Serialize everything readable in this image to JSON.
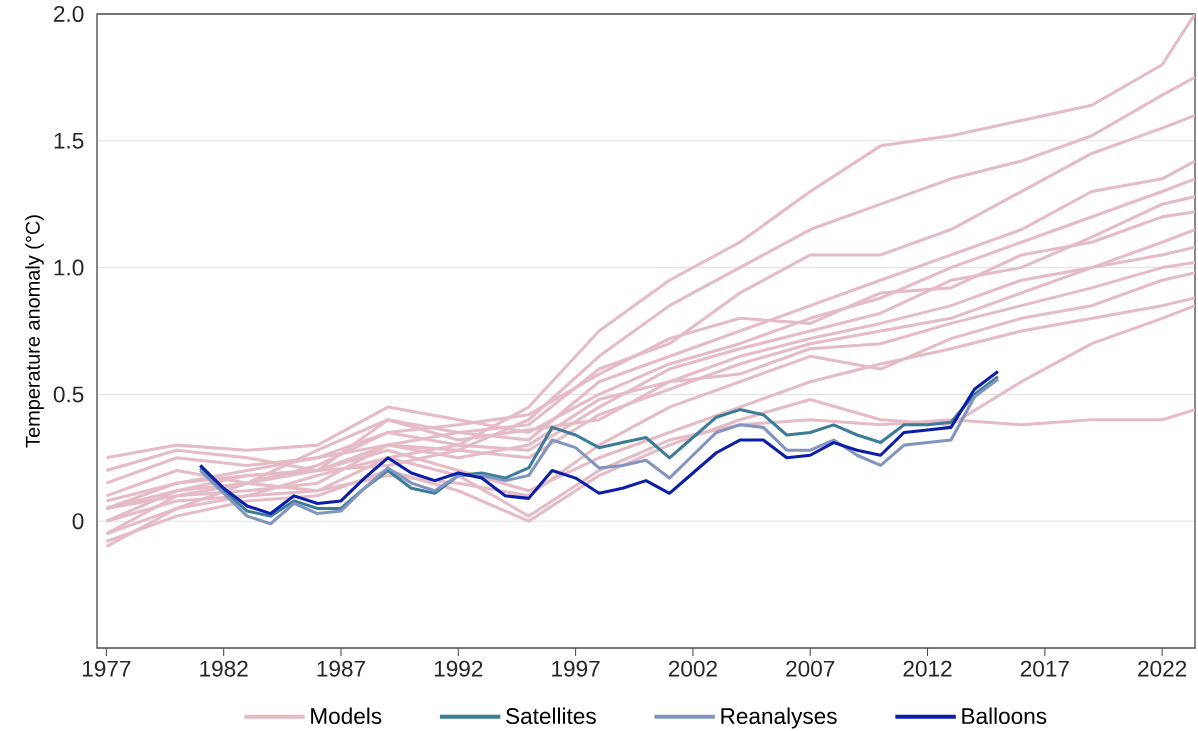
{
  "chart_data": {
    "type": "line",
    "ylabel": "Temperature anomaly (°C)",
    "xlim": [
      1976.6,
      2023.4
    ],
    "ylim": [
      -0.5,
      2.0
    ],
    "xticks": [
      1977,
      1982,
      1987,
      1992,
      1997,
      2002,
      2007,
      2012,
      2017,
      2022
    ],
    "yticks": [
      0,
      0.5,
      {
        "value": 1.0,
        "label": "1.0"
      },
      1.5,
      {
        "value": 2.0,
        "label": "2.0"
      }
    ],
    "grid": "y",
    "legend": "bottom",
    "series": [
      {
        "name": "Models",
        "color": "#e5bcc5",
        "x": [
          1977,
          1980,
          1983,
          1986,
          1989,
          1992,
          1995,
          1998,
          2001,
          2004,
          2007,
          2010,
          2013,
          2016,
          2019,
          2022,
          2023.4
        ],
        "values": [
          -0.05,
          0.1,
          0.15,
          0.22,
          0.35,
          0.3,
          0.45,
          0.75,
          0.95,
          1.1,
          1.3,
          1.48,
          1.52,
          1.58,
          1.64,
          1.8,
          2.0
        ]
      },
      {
        "color": "#e5bcc5",
        "x": [
          1977,
          1980,
          1983,
          1986,
          1989,
          1992,
          1995,
          1998,
          2001,
          2004,
          2007,
          2010,
          2013,
          2016,
          2019,
          2022,
          2023.4
        ],
        "values": [
          0.05,
          0.15,
          0.2,
          0.25,
          0.3,
          0.28,
          0.4,
          0.65,
          0.85,
          1.0,
          1.15,
          1.25,
          1.35,
          1.42,
          1.52,
          1.68,
          1.75
        ]
      },
      {
        "color": "#e5bcc5",
        "x": [
          1977,
          1980,
          1983,
          1986,
          1989,
          1992,
          1995,
          1998,
          2001,
          2004,
          2007,
          2010,
          2013,
          2016,
          2019,
          2022,
          2023.4
        ],
        "values": [
          0.1,
          0.2,
          0.15,
          0.28,
          0.4,
          0.35,
          0.38,
          0.6,
          0.7,
          0.9,
          1.05,
          1.05,
          1.15,
          1.3,
          1.45,
          1.55,
          1.6
        ]
      },
      {
        "color": "#e5bcc5",
        "x": [
          1977,
          1980,
          1983,
          1986,
          1989,
          1992,
          1995,
          1998,
          2001,
          2004,
          2007,
          2010,
          2013,
          2016,
          2019,
          2022,
          2023.4
        ],
        "values": [
          0.0,
          0.12,
          0.18,
          0.2,
          0.3,
          0.35,
          0.32,
          0.55,
          0.65,
          0.75,
          0.85,
          0.95,
          1.05,
          1.15,
          1.3,
          1.35,
          1.42
        ]
      },
      {
        "color": "#e5bcc5",
        "x": [
          1977,
          1980,
          1983,
          1986,
          1989,
          1992,
          1995,
          1998,
          2001,
          2004,
          2007,
          2010,
          2013,
          2016,
          2019,
          2022,
          2023.4
        ],
        "values": [
          0.25,
          0.3,
          0.28,
          0.3,
          0.45,
          0.4,
          0.35,
          0.5,
          0.62,
          0.7,
          0.8,
          0.88,
          1.0,
          1.1,
          1.2,
          1.3,
          1.35
        ]
      },
      {
        "color": "#e5bcc5",
        "x": [
          1977,
          1980,
          1983,
          1986,
          1989,
          1992,
          1995,
          1998,
          2001,
          2004,
          2007,
          2010,
          2013,
          2016,
          2019,
          2022,
          2023.4
        ],
        "values": [
          -0.1,
          0.05,
          0.1,
          0.18,
          0.25,
          0.3,
          0.28,
          0.45,
          0.6,
          0.68,
          0.75,
          0.82,
          0.95,
          1.0,
          1.12,
          1.25,
          1.28
        ]
      },
      {
        "color": "#e5bcc5",
        "x": [
          1977,
          1980,
          1983,
          1986,
          1989,
          1992,
          1995,
          1998,
          2001,
          2004,
          2007,
          2010,
          2013,
          2016,
          2019,
          2022,
          2023.4
        ],
        "values": [
          0.15,
          0.25,
          0.22,
          0.25,
          0.35,
          0.38,
          0.42,
          0.58,
          0.72,
          0.8,
          0.78,
          0.9,
          0.92,
          1.05,
          1.1,
          1.2,
          1.22
        ]
      },
      {
        "color": "#e5bcc5",
        "x": [
          1977,
          1980,
          1983,
          1986,
          1989,
          1992,
          1995,
          1998,
          2001,
          2004,
          2007,
          2010,
          2013,
          2016,
          2019,
          2022,
          2023.4
        ],
        "values": [
          0.05,
          0.1,
          0.12,
          0.15,
          0.3,
          0.25,
          0.3,
          0.48,
          0.55,
          0.65,
          0.72,
          0.78,
          0.85,
          0.95,
          1.0,
          1.1,
          1.15
        ]
      },
      {
        "color": "#e5bcc5",
        "x": [
          1977,
          1980,
          1983,
          1986,
          1989,
          1992,
          1995,
          1998,
          2001,
          2004,
          2007,
          2010,
          2013,
          2016,
          2019,
          2022,
          2023.4
        ],
        "values": [
          -0.05,
          0.05,
          0.15,
          0.2,
          0.22,
          0.28,
          0.25,
          0.42,
          0.52,
          0.62,
          0.7,
          0.75,
          0.8,
          0.9,
          1.0,
          1.05,
          1.08
        ]
      },
      {
        "color": "#e5bcc5",
        "x": [
          1977,
          1980,
          1983,
          1986,
          1989,
          1992,
          1995,
          1998,
          2001,
          2004,
          2007,
          2010,
          2013,
          2016,
          2019,
          2022,
          2023.4
        ],
        "values": [
          0.2,
          0.28,
          0.25,
          0.2,
          0.4,
          0.32,
          0.36,
          0.4,
          0.55,
          0.58,
          0.68,
          0.7,
          0.78,
          0.85,
          0.92,
          1.0,
          1.02
        ]
      },
      {
        "color": "#e5bcc5",
        "x": [
          1977,
          1980,
          1983,
          1986,
          1989,
          1992,
          1995,
          1998,
          2001,
          2004,
          2007,
          2010,
          2013,
          2016,
          2019,
          2022,
          2023.4
        ],
        "values": [
          0.0,
          0.08,
          0.1,
          0.12,
          0.18,
          0.15,
          0.1,
          0.3,
          0.45,
          0.55,
          0.65,
          0.6,
          0.72,
          0.8,
          0.85,
          0.95,
          0.98
        ]
      },
      {
        "color": "#e5bcc5",
        "x": [
          1977,
          1980,
          1983,
          1986,
          1989,
          1992,
          1995,
          1998,
          2001,
          2004,
          2007,
          2010,
          2013,
          2016,
          2019,
          2022,
          2023.4
        ],
        "values": [
          0.08,
          0.15,
          0.18,
          0.2,
          0.28,
          0.2,
          0.12,
          0.25,
          0.35,
          0.45,
          0.55,
          0.62,
          0.68,
          0.75,
          0.8,
          0.85,
          0.88
        ]
      },
      {
        "color": "#e5bcc5",
        "x": [
          1977,
          1980,
          1983,
          1986,
          1989,
          1992,
          1995,
          1998,
          2001,
          2004,
          2007,
          2010,
          2013,
          2016,
          2019,
          2022,
          2023.4
        ],
        "values": [
          -0.08,
          0.02,
          0.08,
          0.1,
          0.2,
          0.12,
          0.0,
          0.18,
          0.3,
          0.4,
          0.48,
          0.4,
          0.38,
          0.55,
          0.7,
          0.8,
          0.85
        ]
      },
      {
        "color": "#e5bcc5",
        "x": [
          1977,
          1980,
          1983,
          1986,
          1989,
          1992,
          1995,
          1998,
          2001,
          2004,
          2007,
          2010,
          2013,
          2016,
          2019,
          2022,
          2023.4
        ],
        "values": [
          0.05,
          0.12,
          0.15,
          0.12,
          0.25,
          0.18,
          0.02,
          0.2,
          0.32,
          0.38,
          0.4,
          0.38,
          0.4,
          0.38,
          0.4,
          0.4,
          0.44
        ]
      },
      {
        "name": "Satellites",
        "color": "#3d7c99",
        "x": [
          1981,
          1982,
          1983,
          1984,
          1985,
          1986,
          1987,
          1988,
          1989,
          1990,
          1991,
          1992,
          1993,
          1994,
          1995,
          1996,
          1997,
          1998,
          1999,
          2000,
          2001,
          2002,
          2003,
          2004,
          2005,
          2006,
          2007,
          2008,
          2009,
          2010,
          2011,
          2012,
          2013,
          2014,
          2015
        ],
        "values": [
          0.21,
          0.12,
          0.04,
          0.02,
          0.08,
          0.05,
          0.05,
          0.13,
          0.2,
          0.13,
          0.11,
          0.18,
          0.19,
          0.17,
          0.21,
          0.37,
          0.34,
          0.29,
          0.31,
          0.33,
          0.25,
          0.33,
          0.41,
          0.44,
          0.42,
          0.34,
          0.35,
          0.38,
          0.34,
          0.31,
          0.38,
          0.38,
          0.39,
          0.5,
          0.57
        ]
      },
      {
        "name": "Reanalyses",
        "color": "#8295c0",
        "x": [
          1981,
          1982,
          1983,
          1984,
          1985,
          1986,
          1987,
          1988,
          1989,
          1990,
          1991,
          1992,
          1993,
          1994,
          1995,
          1996,
          1997,
          1998,
          1999,
          2000,
          2001,
          2002,
          2003,
          2004,
          2005,
          2006,
          2007,
          2008,
          2009,
          2010,
          2011,
          2012,
          2013,
          2014,
          2015
        ],
        "values": [
          0.2,
          0.11,
          0.02,
          -0.01,
          0.07,
          0.03,
          0.04,
          0.13,
          0.21,
          0.15,
          0.12,
          0.18,
          0.18,
          0.16,
          0.18,
          0.32,
          0.29,
          0.21,
          0.22,
          0.24,
          0.17,
          0.26,
          0.35,
          0.38,
          0.37,
          0.28,
          0.28,
          0.32,
          0.26,
          0.22,
          0.3,
          0.31,
          0.32,
          0.49,
          0.56
        ]
      },
      {
        "name": "Balloons",
        "color": "#0a1ea8",
        "x": [
          1981,
          1982,
          1983,
          1984,
          1985,
          1986,
          1987,
          1988,
          1989,
          1990,
          1991,
          1992,
          1993,
          1994,
          1995,
          1996,
          1997,
          1998,
          1999,
          2000,
          2001,
          2002,
          2003,
          2004,
          2005,
          2006,
          2007,
          2008,
          2009,
          2010,
          2011,
          2012,
          2013,
          2014,
          2015
        ],
        "values": [
          0.22,
          0.13,
          0.06,
          0.03,
          0.1,
          0.07,
          0.08,
          0.17,
          0.25,
          0.19,
          0.16,
          0.19,
          0.17,
          0.1,
          0.09,
          0.2,
          0.17,
          0.11,
          0.13,
          0.16,
          0.11,
          0.19,
          0.27,
          0.32,
          0.32,
          0.25,
          0.26,
          0.31,
          0.28,
          0.26,
          0.35,
          0.36,
          0.37,
          0.52,
          0.59
        ]
      }
    ]
  }
}
